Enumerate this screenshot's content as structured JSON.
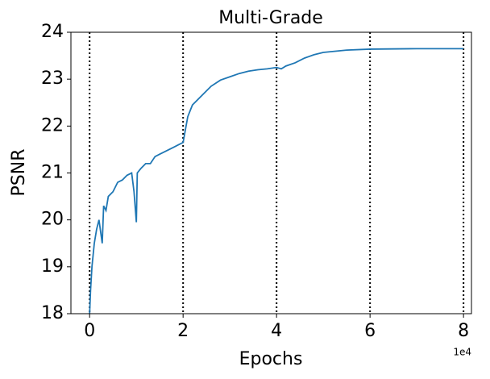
{
  "chart_data": {
    "type": "line",
    "title": "Multi-Grade",
    "x_label": "Epochs",
    "y_label": "PSNR",
    "x_offset_label": "1e4",
    "x": [
      0,
      200,
      500,
      1000,
      1500,
      2000,
      2700,
      3000,
      3500,
      4000,
      5000,
      6000,
      7000,
      8000,
      9000,
      9500,
      10000,
      10200,
      11000,
      12000,
      13000,
      14000,
      15000,
      16000,
      17000,
      18000,
      19000,
      20000,
      21000,
      22000,
      24000,
      26000,
      28000,
      30000,
      32000,
      34000,
      36000,
      38000,
      40000,
      41000,
      42000,
      44000,
      46000,
      48000,
      50000,
      55000,
      60000,
      70000,
      80000
    ],
    "series": [
      {
        "name": "PSNR",
        "color": "#1f77b4",
        "values": [
          18.0,
          18.5,
          19.0,
          19.5,
          19.8,
          20.0,
          19.5,
          20.3,
          20.2,
          20.5,
          20.6,
          20.8,
          20.85,
          20.95,
          21.0,
          20.6,
          19.95,
          21.0,
          21.1,
          21.2,
          21.2,
          21.35,
          21.4,
          21.45,
          21.5,
          21.55,
          21.6,
          21.65,
          22.2,
          22.45,
          22.65,
          22.85,
          22.98,
          23.05,
          23.12,
          23.17,
          23.2,
          23.22,
          23.25,
          23.22,
          23.28,
          23.35,
          23.45,
          23.52,
          23.57,
          23.62,
          23.64,
          23.65,
          23.65
        ]
      }
    ],
    "vlines": [
      0,
      20000,
      40000,
      60000,
      80000
    ],
    "xlim": [
      -4000,
      81700
    ],
    "ylim": [
      18,
      24
    ],
    "xticks": [
      {
        "value": 0,
        "label": "0"
      },
      {
        "value": 20000,
        "label": "2"
      },
      {
        "value": 40000,
        "label": "4"
      },
      {
        "value": 60000,
        "label": "6"
      },
      {
        "value": 80000,
        "label": "8"
      }
    ],
    "yticks": [
      18,
      19,
      20,
      21,
      22,
      23,
      24
    ]
  }
}
